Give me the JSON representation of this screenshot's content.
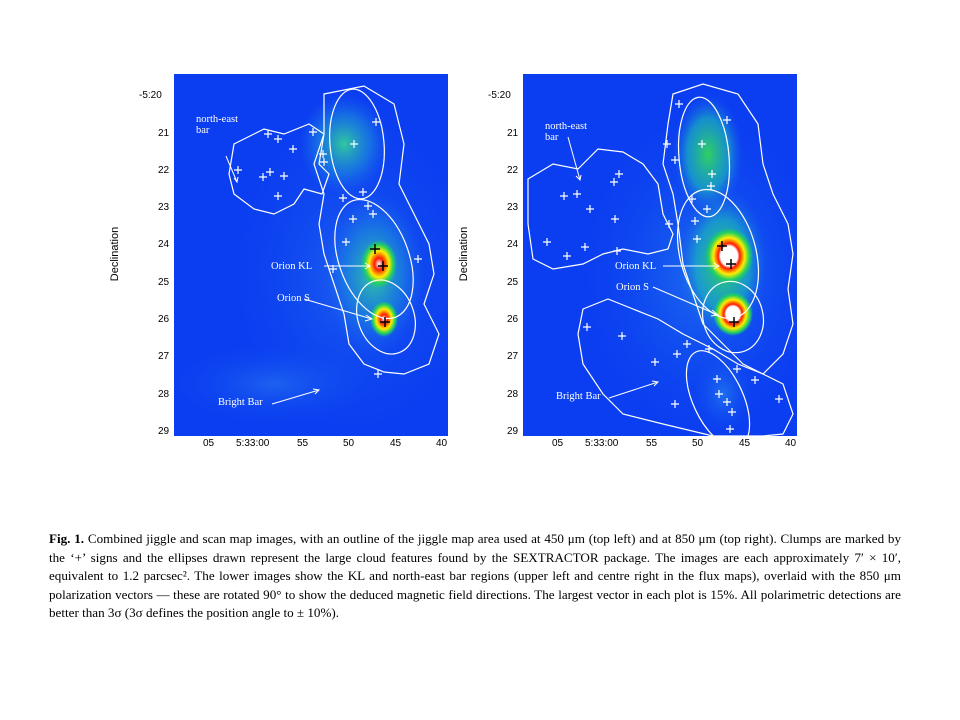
{
  "panels": [
    {
      "name": "450 micron",
      "y_ticks": [
        "-5:20",
        "21",
        "22",
        "23",
        "24",
        "25",
        "26",
        "27",
        "28",
        "29"
      ],
      "x_ticks": [
        "05",
        "5:33:00",
        "55",
        "50",
        "45",
        "40"
      ],
      "ylabel": "Declination",
      "labels": {
        "ne_bar": "north-east\nbar",
        "kl": "Orion KL",
        "s": "Orion S",
        "bright_bar": "Bright Bar"
      }
    },
    {
      "name": "850 micron",
      "y_ticks": [
        "-5:20",
        "21",
        "22",
        "23",
        "24",
        "25",
        "26",
        "27",
        "28",
        "29"
      ],
      "x_ticks": [
        "05",
        "5:33:00",
        "55",
        "50",
        "45",
        "40"
      ],
      "ylabel": "Declination",
      "labels": {
        "ne_bar": "north-east\nbar",
        "kl": "Orion KL",
        "s": "Orion S",
        "bright_bar": "Bright Bar"
      }
    }
  ],
  "caption": {
    "fig": "Fig. 1.",
    "text": "Combined jiggle and scan map images, with an outline of the jiggle map area used at 450 μm (top left) and at 850 μm (top right). Clumps are marked by the ‘+’ signs and the ellipses drawn represent the large cloud features found by the SEXTRACTOR package. The images are each approximately 7′ × 10′, equivalent to 1.2 parcsec². The lower images show the KL and north-east bar regions (upper left and centre right in the flux maps), overlaid with the 850 μm polarization vectors — these are rotated 90° to show the deduced magnetic field directions. The largest vector in each plot is 15%. All polarimetric detections are better than 3σ (3σ defines the position angle to ± 10%)."
  },
  "colors": {
    "map_background": "#0a3cf0",
    "contour": "#ffffff",
    "peak": "#ff0000"
  }
}
